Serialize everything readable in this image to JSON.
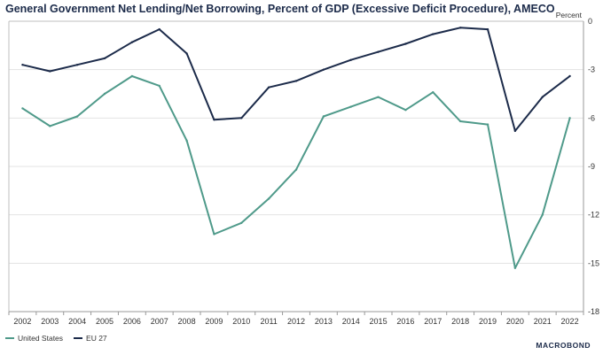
{
  "chart_data": {
    "type": "line",
    "title": "General Government Net Lending/Net Borrowing, Percent of GDP (Excessive Deficit Procedure), AMECO",
    "ylabel": "Percent",
    "xlabel": "",
    "ylim": [
      -18,
      0
    ],
    "yticks": [
      0,
      -3,
      -6,
      -9,
      -12,
      -15,
      -18
    ],
    "categories": [
      "2002",
      "2003",
      "2004",
      "2005",
      "2006",
      "2007",
      "2008",
      "2009",
      "2010",
      "2011",
      "2012",
      "2013",
      "2014",
      "2015",
      "2016",
      "2017",
      "2018",
      "2019",
      "2020",
      "2021",
      "2022"
    ],
    "series": [
      {
        "name": "United States",
        "color": "#4f9a8a",
        "values": [
          -5.4,
          -6.5,
          -5.9,
          -4.5,
          -3.4,
          -4.0,
          -7.4,
          -13.2,
          -12.5,
          -11.0,
          -9.2,
          -5.9,
          -5.3,
          -4.7,
          -5.5,
          -4.4,
          -6.2,
          -6.4,
          -15.3,
          -12.0,
          -6.0
        ]
      },
      {
        "name": "EU 27",
        "color": "#1c2b4a",
        "values": [
          -2.7,
          -3.1,
          -2.7,
          -2.3,
          -1.3,
          -0.5,
          -2.0,
          -6.1,
          -6.0,
          -4.1,
          -3.7,
          -3.0,
          -2.4,
          -1.9,
          -1.4,
          -0.8,
          -0.4,
          -0.5,
          -6.8,
          -4.7,
          -3.4
        ]
      }
    ],
    "grid": true,
    "legend": "bottom-left"
  },
  "brand": "MACROBOND"
}
